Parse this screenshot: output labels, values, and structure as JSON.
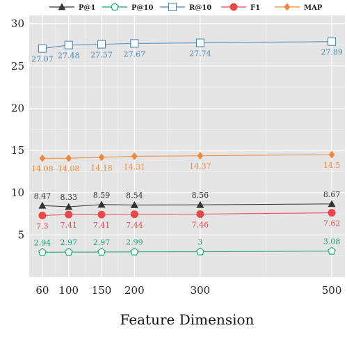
{
  "chart_data": {
    "type": "line",
    "title": "",
    "xlabel": "Feature Dimension",
    "ylabel": "",
    "x": [
      60,
      100,
      150,
      200,
      300,
      500
    ],
    "x_ticks": [
      "60",
      "100",
      "150",
      "200",
      "300",
      "500"
    ],
    "xlim": [
      40,
      520
    ],
    "ylim": [
      0,
      31
    ],
    "y_ticks": [
      5,
      10,
      15,
      20,
      25,
      30
    ],
    "grid": true,
    "legend_position": "top",
    "series": [
      {
        "name": "P@1",
        "values": [
          8.47,
          8.33,
          8.59,
          8.54,
          8.56,
          8.67
        ],
        "labels": [
          "8.47",
          "8.33",
          "8.59",
          "8.54",
          "8.56",
          "8.67"
        ],
        "color": "#333333",
        "marker": "triangle",
        "label_pos": "above"
      },
      {
        "name": "P@10",
        "values": [
          2.94,
          2.97,
          2.97,
          2.99,
          3,
          3.08
        ],
        "labels": [
          "2.94",
          "2.97",
          "2.97",
          "2.99",
          "3",
          "3.08"
        ],
        "color": "#1b9e77",
        "marker": "pentagon",
        "label_pos": "above"
      },
      {
        "name": "R@10",
        "values": [
          27.07,
          27.48,
          27.57,
          27.67,
          27.74,
          27.89
        ],
        "labels": [
          "27.07",
          "27.48",
          "27.57",
          "27.67",
          "27.74",
          "27.89"
        ],
        "color": "#4a8ab8",
        "marker": "square",
        "label_pos": "below"
      },
      {
        "name": "F1",
        "values": [
          7.3,
          7.41,
          7.41,
          7.44,
          7.46,
          7.62
        ],
        "labels": [
          "7.3",
          "7.41",
          "7.41",
          "7.44",
          "7.46",
          "7.62"
        ],
        "color": "#e6494a",
        "marker": "circle",
        "label_pos": "below"
      },
      {
        "name": "MAP",
        "values": [
          14.08,
          14.08,
          14.18,
          14.31,
          14.37,
          14.5
        ],
        "labels": [
          "14.08",
          "14.08",
          "14.18",
          "14.31",
          "14.37",
          "14.5"
        ],
        "color": "#f4883a",
        "marker": "diamond",
        "label_pos": "below"
      }
    ]
  }
}
